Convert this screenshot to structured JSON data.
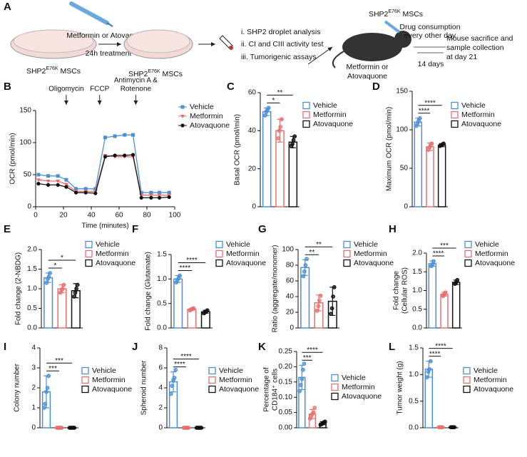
{
  "schematic": {
    "panel": "A",
    "treatment": "Metformin or Atovaquone",
    "duration": "24h treatment",
    "cells": [
      {
        "name": "SHP2",
        "sup": "E76K",
        "suffix": " MSCs"
      },
      {
        "name": "SHP2",
        "sup": "E76K",
        "suffix": " MSCs"
      },
      {
        "name": "SHP2",
        "sup": "E76K",
        "suffix": " MSCs"
      }
    ],
    "assays": [
      "i. SHP2 droplet analysis",
      "ii. CI and CIII activity test",
      "iii. Tumorigenic assays"
    ],
    "dosing": [
      "Drug consumption",
      "every other day"
    ],
    "period": "14 days",
    "drugs": [
      "Metformin or",
      "Atovaquone"
    ],
    "endpoint": [
      "Mouse sacrifice and",
      "sample collection",
      " at day 21"
    ]
  },
  "chart_data": [
    {
      "type": "line",
      "panel": "B",
      "xlabel": "Time (minutes)",
      "ylabel": [
        "OCR (pmol/min)"
      ],
      "x": [
        2,
        9,
        16,
        22,
        29,
        36,
        43,
        50,
        57,
        64,
        70,
        76,
        83,
        89,
        96
      ],
      "series": [
        {
          "name": "Vehicle",
          "color": "#4a90d9",
          "marker": "square",
          "values": [
            50,
            48,
            48,
            42,
            28,
            28,
            28,
            108,
            110,
            112,
            112,
            22,
            22,
            22,
            22
          ]
        },
        {
          "name": "Metformin",
          "color": "#e8706f",
          "marker": "triangle",
          "values": [
            42,
            40,
            40,
            35,
            24,
            24,
            24,
            80,
            78,
            78,
            78,
            18,
            18,
            18,
            18
          ]
        },
        {
          "name": "Atovaquone",
          "color": "#111111",
          "marker": "circle",
          "values": [
            36,
            34,
            34,
            31,
            22,
            22,
            21,
            78,
            80,
            80,
            81,
            14,
            14,
            14,
            15
          ]
        }
      ],
      "annotations": [
        {
          "text": [
            "Oligomycin"
          ],
          "x": 22
        },
        {
          "text": [
            "FCCP"
          ],
          "x": 46
        },
        {
          "text": [
            "Antimycin A &",
            "Rotenone"
          ],
          "x": 72
        }
      ],
      "xlim": [
        0,
        100
      ],
      "xticks": [
        0,
        20,
        40,
        60,
        80,
        100
      ],
      "ylim": [
        0,
        150
      ],
      "yticks": [
        0,
        50,
        100,
        150
      ]
    },
    {
      "type": "bar",
      "panel": "C",
      "ylabel": [
        "Basal OCR (pmol/min)"
      ],
      "categories": [
        "Vehicle",
        "Metformin",
        "Atovaquone"
      ],
      "colors": [
        "#4a90d9",
        "#e8706f",
        "#111111"
      ],
      "values": [
        50,
        40,
        34
      ],
      "errors": [
        2,
        6,
        3
      ],
      "points": [
        [
          48,
          50,
          51,
          52
        ],
        [
          36,
          40,
          42,
          46
        ],
        [
          32,
          33,
          35,
          37
        ]
      ],
      "ylim": [
        0,
        60
      ],
      "yticks": [
        0,
        20,
        40,
        60
      ],
      "significance": [
        {
          "label": "**",
          "between": [
            0,
            2
          ]
        },
        {
          "label": "*",
          "between": [
            0,
            1
          ]
        }
      ]
    },
    {
      "type": "bar",
      "panel": "D",
      "ylabel": [
        "Maximum OCR (pmol/min)"
      ],
      "categories": [
        "Vehicle",
        "Metformin",
        "Atovaquone"
      ],
      "colors": [
        "#4a90d9",
        "#e8706f",
        "#111111"
      ],
      "values": [
        110,
        78,
        80
      ],
      "errors": [
        5,
        5,
        2
      ],
      "points": [
        [
          105,
          108,
          112,
          115
        ],
        [
          74,
          77,
          80,
          82
        ],
        [
          79,
          80,
          81,
          82
        ]
      ],
      "ylim": [
        0,
        150
      ],
      "yticks": [
        0,
        50,
        100,
        150
      ],
      "significance": [
        {
          "label": "****",
          "between": [
            0,
            2
          ]
        },
        {
          "label": "****",
          "between": [
            0,
            1
          ]
        }
      ]
    },
    {
      "type": "bar",
      "panel": "E",
      "ylabel": [
        "Fold change (2-NBDG)"
      ],
      "categories": [
        "Vehicle",
        "Metformin",
        "Atovaquone"
      ],
      "colors": [
        "#4a90d9",
        "#e8706f",
        "#111111"
      ],
      "values": [
        1.28,
        1.0,
        0.95
      ],
      "errors": [
        0.12,
        0.1,
        0.18
      ],
      "points": [
        [
          1.15,
          1.25,
          1.3,
          1.4
        ],
        [
          0.9,
          0.97,
          1.0,
          1.1
        ],
        [
          0.8,
          0.9,
          1.0,
          1.1
        ]
      ],
      "ylim": [
        0,
        2
      ],
      "yticks": [
        {
          "value": 0,
          "label": "0.0"
        },
        0.5,
        {
          "value": 1,
          "label": "1.0"
        },
        1.5,
        {
          "value": 2,
          "label": "2.0"
        }
      ],
      "significance": [
        {
          "label": "*",
          "between": [
            0,
            2
          ]
        },
        {
          "label": "*",
          "between": [
            0,
            1
          ]
        }
      ]
    },
    {
      "type": "bar",
      "panel": "F",
      "ylabel": [
        "Fold change (Glutamate)"
      ],
      "categories": [
        "Vehicle",
        "Metformin",
        "Atovaquone"
      ],
      "colors": [
        "#4a90d9",
        "#e8706f",
        "#111111"
      ],
      "values": [
        1.0,
        0.38,
        0.33
      ],
      "errors": [
        0.07,
        0.02,
        0.03
      ],
      "points": [
        [
          0.93,
          0.98,
          1.02,
          1.07
        ],
        [
          0.36,
          0.38,
          0.39,
          0.4
        ],
        [
          0.3,
          0.32,
          0.34,
          0.36
        ]
      ],
      "ylim": [
        0,
        1.5
      ],
      "yticks": [
        {
          "value": 0,
          "label": "0.0"
        },
        0.5,
        {
          "value": 1,
          "label": "1.0"
        },
        1.5
      ],
      "significance": [
        {
          "label": "****",
          "between": [
            0,
            2
          ]
        },
        {
          "label": "****",
          "between": [
            0,
            1
          ]
        }
      ]
    },
    {
      "type": "bar",
      "panel": "G",
      "ylabel": [
        "Ratio (aggregate/monomer)"
      ],
      "categories": [
        "Vehicle",
        "Metformin",
        "Atovaquone"
      ],
      "colors": [
        "#4a90d9",
        "#e8706f",
        "#111111"
      ],
      "values": [
        77,
        32,
        34
      ],
      "errors": [
        10,
        10,
        18
      ],
      "points": [
        [
          66,
          72,
          80,
          88
        ],
        [
          22,
          28,
          35,
          41
        ],
        [
          18,
          25,
          40,
          52
        ]
      ],
      "ylim": [
        0,
        100
      ],
      "yticks": [
        0,
        20,
        40,
        60,
        80,
        100
      ],
      "significance": [
        {
          "label": "**",
          "between": [
            0,
            2
          ]
        },
        {
          "label": "**",
          "between": [
            0,
            1
          ]
        }
      ]
    },
    {
      "type": "bar",
      "panel": "H",
      "ylabel": [
        "Fold change",
        "(Cellular ROS)"
      ],
      "categories": [
        "Vehicle",
        "Metformin",
        "Atovaquone"
      ],
      "colors": [
        "#4a90d9",
        "#e8706f",
        "#111111"
      ],
      "values": [
        1.72,
        0.9,
        1.22
      ],
      "errors": [
        0.07,
        0.05,
        0.06
      ],
      "points": [
        [
          1.65,
          1.7,
          1.78
        ],
        [
          0.85,
          0.9,
          0.95
        ],
        [
          1.18,
          1.22,
          1.28
        ]
      ],
      "ylim": [
        0,
        2
      ],
      "yticks": [
        {
          "value": 0,
          "label": "0.0"
        },
        0.5,
        {
          "value": 1,
          "label": "1.0"
        },
        1.5,
        {
          "value": 2,
          "label": "2.0"
        }
      ],
      "significance": [
        {
          "label": "***",
          "between": [
            0,
            2
          ]
        },
        {
          "label": "****",
          "between": [
            0,
            1
          ]
        }
      ]
    },
    {
      "type": "bar",
      "panel": "I",
      "ylabel": [
        "Colony number"
      ],
      "categories": [
        "Vehicle",
        "Metformin",
        "Atovaquone"
      ],
      "colors": [
        "#4a90d9",
        "#e8706f",
        "#111111"
      ],
      "values": [
        1.8,
        0,
        0
      ],
      "errors": [
        0.8,
        0,
        0
      ],
      "points": [
        [
          1.0,
          1.2,
          1.8,
          2.0,
          2.6
        ],
        [
          0,
          0,
          0,
          0,
          0
        ],
        [
          0,
          0,
          0,
          0,
          0
        ]
      ],
      "ylim": [
        0,
        4
      ],
      "yticks": [
        0,
        1,
        2,
        3,
        4
      ],
      "significance": [
        {
          "label": "***",
          "between": [
            0,
            2
          ]
        },
        {
          "label": "***",
          "between": [
            0,
            1
          ]
        }
      ]
    },
    {
      "type": "bar",
      "panel": "J",
      "ylabel": [
        "Spheroid number"
      ],
      "categories": [
        "Vehicle",
        "Metformin",
        "Atovaquone"
      ],
      "colors": [
        "#4a90d9",
        "#e8706f",
        "#111111"
      ],
      "values": [
        4.6,
        0,
        0
      ],
      "errors": [
        1.0,
        0,
        0
      ],
      "points": [
        [
          3.4,
          4.2,
          4.8,
          5.0,
          5.8
        ],
        [
          0,
          0,
          0,
          0,
          0
        ],
        [
          0,
          0,
          0,
          0,
          0
        ]
      ],
      "ylim": [
        0,
        8
      ],
      "yticks": [
        0,
        2,
        4,
        6,
        8
      ],
      "significance": [
        {
          "label": "****",
          "between": [
            0,
            2
          ]
        },
        {
          "label": "****",
          "between": [
            0,
            1
          ]
        }
      ]
    },
    {
      "type": "bar",
      "panel": "K",
      "ylabel": [
        "Percentage of",
        "CD184⁺ cells"
      ],
      "categories": [
        "Vehicle",
        "Metformin",
        "Atovaquone"
      ],
      "colors": [
        "#4a90d9",
        "#e8706f",
        "#111111"
      ],
      "values": [
        0.165,
        0.045,
        0.015
      ],
      "errors": [
        0.04,
        0.015,
        0.005
      ],
      "points": [
        [
          0.12,
          0.14,
          0.16,
          0.19,
          0.21
        ],
        [
          0.03,
          0.04,
          0.045,
          0.05,
          0.065
        ],
        [
          0.01,
          0.012,
          0.015,
          0.018,
          0.02
        ]
      ],
      "ylim": [
        0,
        0.25
      ],
      "yticks": [
        {
          "value": 0,
          "label": "0.00"
        },
        0.05,
        {
          "value": 0.1,
          "label": "0.10"
        },
        0.15,
        {
          "value": 0.2,
          "label": "0.20"
        },
        0.25
      ],
      "significance": [
        {
          "label": "****",
          "between": [
            0,
            2
          ]
        },
        {
          "label": "***",
          "between": [
            0,
            1
          ]
        }
      ]
    },
    {
      "type": "bar",
      "panel": "L",
      "ylabel": [
        "Tumor weight (g)"
      ],
      "categories": [
        "Vehicle",
        "Metformin",
        "Atovaquone"
      ],
      "colors": [
        "#4a90d9",
        "#e8706f",
        "#111111"
      ],
      "values": [
        1.1,
        0.01,
        0.01
      ],
      "errors": [
        0.15,
        0,
        0
      ],
      "points": [
        [
          0.95,
          1.05,
          1.1,
          1.25
        ],
        [
          0.01,
          0.01,
          0.01,
          0.01
        ],
        [
          0.01,
          0.01,
          0.01,
          0.01
        ]
      ],
      "ylim": [
        0,
        1.5
      ],
      "yticks": [
        {
          "value": 0,
          "label": "0.0"
        },
        0.5,
        {
          "value": 1,
          "label": "1.0"
        },
        1.5
      ],
      "significance": [
        {
          "label": "****",
          "between": [
            0,
            2
          ]
        },
        {
          "label": "****",
          "between": [
            0,
            1
          ]
        }
      ]
    }
  ]
}
